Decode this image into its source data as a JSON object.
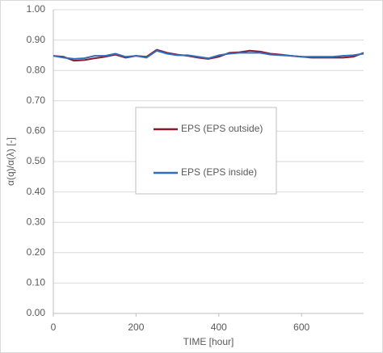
{
  "chart_data": {
    "type": "line",
    "x_label": "TIME [hour]",
    "y_label": "α(q)/α(λ) [-]",
    "x": [
      0,
      25,
      50,
      75,
      100,
      125,
      150,
      175,
      200,
      225,
      250,
      275,
      300,
      325,
      350,
      375,
      400,
      425,
      450,
      475,
      500,
      525,
      550,
      575,
      600,
      625,
      650,
      675,
      700,
      725,
      750
    ],
    "series": [
      {
        "name": "EPS (EPS outside)",
        "color": "#8b1a2e",
        "values": [
          0.848,
          0.845,
          0.832,
          0.834,
          0.84,
          0.845,
          0.852,
          0.842,
          0.848,
          0.845,
          0.868,
          0.858,
          0.852,
          0.848,
          0.842,
          0.838,
          0.845,
          0.858,
          0.86,
          0.865,
          0.862,
          0.855,
          0.852,
          0.848,
          0.845,
          0.842,
          0.842,
          0.842,
          0.842,
          0.845,
          0.858
        ]
      },
      {
        "name": "EPS (EPS inside)",
        "color": "#2f6fbf",
        "values": [
          0.848,
          0.842,
          0.838,
          0.84,
          0.848,
          0.848,
          0.855,
          0.845,
          0.848,
          0.842,
          0.865,
          0.855,
          0.85,
          0.85,
          0.845,
          0.84,
          0.85,
          0.855,
          0.858,
          0.858,
          0.858,
          0.852,
          0.85,
          0.848,
          0.845,
          0.845,
          0.845,
          0.845,
          0.848,
          0.85,
          0.855
        ]
      }
    ],
    "xlim": [
      0,
      750
    ],
    "xticks": [
      0,
      200,
      400,
      600
    ],
    "ylim": [
      0,
      1
    ],
    "yticks": [
      {
        "value": 0,
        "label": "0.00"
      },
      {
        "value": 0.1,
        "label": "0.10"
      },
      {
        "value": 0.2,
        "label": "0.20"
      },
      {
        "value": 0.3,
        "label": "0.30"
      },
      {
        "value": 0.4,
        "label": "0.40"
      },
      {
        "value": 0.5,
        "label": "0.50"
      },
      {
        "value": 0.6,
        "label": "0.60"
      },
      {
        "value": 0.7,
        "label": "0.70"
      },
      {
        "value": 0.8,
        "label": "0.80"
      },
      {
        "value": 0.9,
        "label": "0.90"
      },
      {
        "value": 1,
        "label": "1.00"
      }
    ],
    "grid": true
  }
}
